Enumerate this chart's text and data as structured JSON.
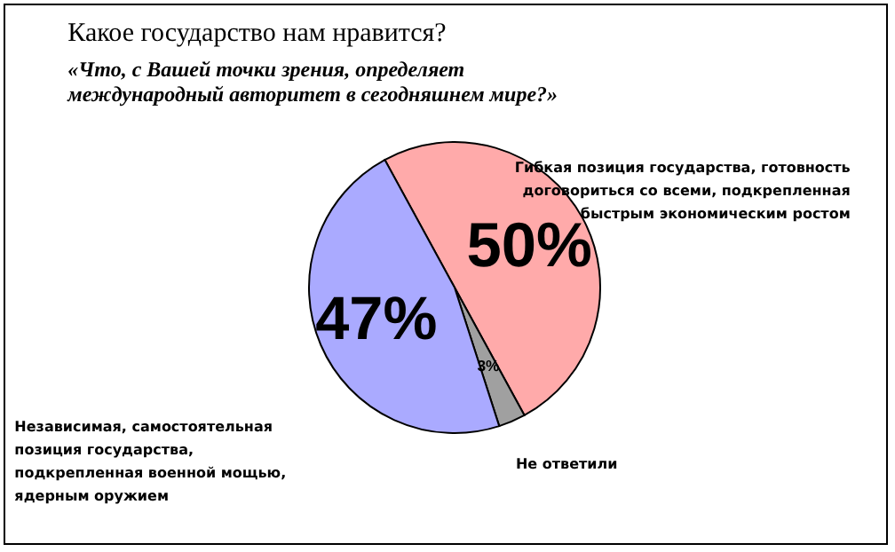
{
  "chart_data": {
    "type": "pie",
    "title": "Какое государство нам нравится?",
    "subtitle": "«Что, с Вашей точки зрения, определяет международный авторитет в сегодняшнем мире?»",
    "categories": [
      "Гибкая позиция государства, готовность договориться со всеми, подкрепленная быстрым экономическим ростом",
      "Не ответили",
      "Независимая, самостоятельная позиция государства, подкрепленная военной мощью, ядерным оружием"
    ],
    "values": [
      50,
      3,
      47
    ],
    "colors": [
      "#ffaaaa",
      "#a0a0a0",
      "#aaaaff"
    ],
    "value_labels": [
      "50%",
      "3%",
      "47%"
    ],
    "legend": false
  }
}
